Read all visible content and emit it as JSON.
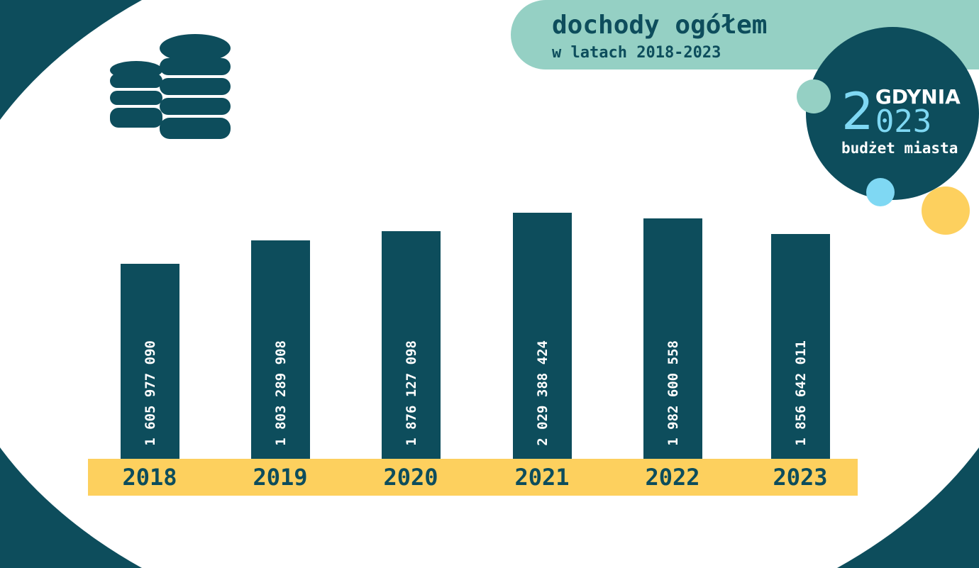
{
  "header": {
    "title": "dochody ogółem",
    "subtitle": "w latach 2018-2023"
  },
  "logo": {
    "city": "GDYNIA",
    "year_first": "2",
    "year_rest": "023",
    "tagline": "budżet miasta"
  },
  "icon": "coins-stack-icon",
  "colors": {
    "dark_teal": "#0d4d5c",
    "mint": "#95d0c4",
    "yellow": "#fdd05e",
    "light_blue": "#7fd8f3",
    "white": "#ffffff"
  },
  "chart_data": {
    "type": "bar",
    "title": "dochody ogółem",
    "subtitle": "w latach 2018-2023",
    "categories": [
      "2018",
      "2019",
      "2020",
      "2021",
      "2022",
      "2023"
    ],
    "values": [
      1605977090,
      1803289908,
      1876127098,
      2029388424,
      1982600558,
      1856642011
    ],
    "data_labels": [
      "1 605 977 090",
      "1 803 289 908",
      "1 876 127 098",
      "2 029 388 424",
      "1 982 600 558",
      "1 856 642 011"
    ],
    "xlabel": "",
    "ylabel": "",
    "grid": false,
    "legend": "none"
  }
}
